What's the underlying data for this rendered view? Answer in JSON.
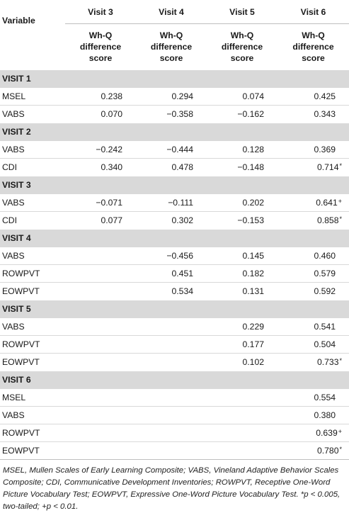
{
  "table": {
    "variable_header": "Variable",
    "columns": [
      {
        "visit": "Visit 3",
        "sub": [
          "Wh-Q",
          "difference",
          "score"
        ]
      },
      {
        "visit": "Visit 4",
        "sub": [
          "Wh-Q",
          "difference",
          "score"
        ]
      },
      {
        "visit": "Visit 5",
        "sub": [
          "Wh-Q",
          "difference",
          "score"
        ]
      },
      {
        "visit": "Visit 6",
        "sub": [
          "Wh-Q",
          "difference",
          "score"
        ]
      }
    ],
    "sections": [
      {
        "title": "VISIT 1",
        "rows": [
          {
            "label": "MSEL",
            "values": [
              "0.238",
              "0.294",
              "0.074",
              "0.425"
            ],
            "marks": [
              "",
              "",
              "",
              ""
            ]
          },
          {
            "label": "VABS",
            "values": [
              "0.070",
              "−0.358",
              "−0.162",
              "0.343"
            ],
            "marks": [
              "",
              "",
              "",
              ""
            ]
          }
        ]
      },
      {
        "title": "VISIT 2",
        "rows": [
          {
            "label": "VABS",
            "values": [
              "−0.242",
              "−0.444",
              "0.128",
              "0.369"
            ],
            "marks": [
              "",
              "",
              "",
              ""
            ]
          },
          {
            "label": "CDI",
            "values": [
              "0.340",
              "0.478",
              "−0.148",
              "0.714"
            ],
            "marks": [
              "",
              "",
              "",
              "*"
            ]
          }
        ]
      },
      {
        "title": "VISIT 3",
        "rows": [
          {
            "label": "VABS",
            "values": [
              "−0.071",
              "−0.111",
              "0.202",
              "0.641"
            ],
            "marks": [
              "",
              "",
              "",
              "+"
            ]
          },
          {
            "label": "CDI",
            "values": [
              "0.077",
              "0.302",
              "−0.153",
              "0.858"
            ],
            "marks": [
              "",
              "",
              "",
              "*"
            ]
          }
        ]
      },
      {
        "title": "VISIT 4",
        "rows": [
          {
            "label": "VABS",
            "values": [
              "",
              "−0.456",
              "0.145",
              "0.460"
            ],
            "marks": [
              "",
              "",
              "",
              ""
            ]
          },
          {
            "label": "ROWPVT",
            "values": [
              "",
              "0.451",
              "0.182",
              "0.579"
            ],
            "marks": [
              "",
              "",
              "",
              ""
            ]
          },
          {
            "label": "EOWPVT",
            "values": [
              "",
              "0.534",
              "0.131",
              "0.592"
            ],
            "marks": [
              "",
              "",
              "",
              ""
            ]
          }
        ]
      },
      {
        "title": "VISIT 5",
        "rows": [
          {
            "label": "VABS",
            "values": [
              "",
              "",
              "0.229",
              "0.541"
            ],
            "marks": [
              "",
              "",
              "",
              ""
            ]
          },
          {
            "label": "ROWPVT",
            "values": [
              "",
              "",
              "0.177",
              "0.504"
            ],
            "marks": [
              "",
              "",
              "",
              ""
            ]
          },
          {
            "label": "EOWPVT",
            "values": [
              "",
              "",
              "0.102",
              "0.733"
            ],
            "marks": [
              "",
              "",
              "",
              "*"
            ]
          }
        ]
      },
      {
        "title": "VISIT 6",
        "rows": [
          {
            "label": "MSEL",
            "values": [
              "",
              "",
              "",
              "0.554"
            ],
            "marks": [
              "",
              "",
              "",
              ""
            ]
          },
          {
            "label": "VABS",
            "values": [
              "",
              "",
              "",
              "0.380"
            ],
            "marks": [
              "",
              "",
              "",
              ""
            ]
          },
          {
            "label": "ROWPVT",
            "values": [
              "",
              "",
              "",
              "0.639"
            ],
            "marks": [
              "",
              "",
              "",
              "+"
            ]
          },
          {
            "label": "EOWPVT",
            "values": [
              "",
              "",
              "",
              "0.780"
            ],
            "marks": [
              "",
              "",
              "",
              "*"
            ]
          }
        ]
      }
    ]
  },
  "footnote": "MSEL, Mullen Scales of Early Learning Composite; VABS, Vineland Adaptive Behavior Scales Composite; CDI, Communicative Development Inventories; ROWPVT, Receptive One-Word Picture Vocabulary Test; EOWPVT, Expressive One-Word Picture Vocabulary Test. *p < 0.005, two-tailed; +p < 0.01."
}
